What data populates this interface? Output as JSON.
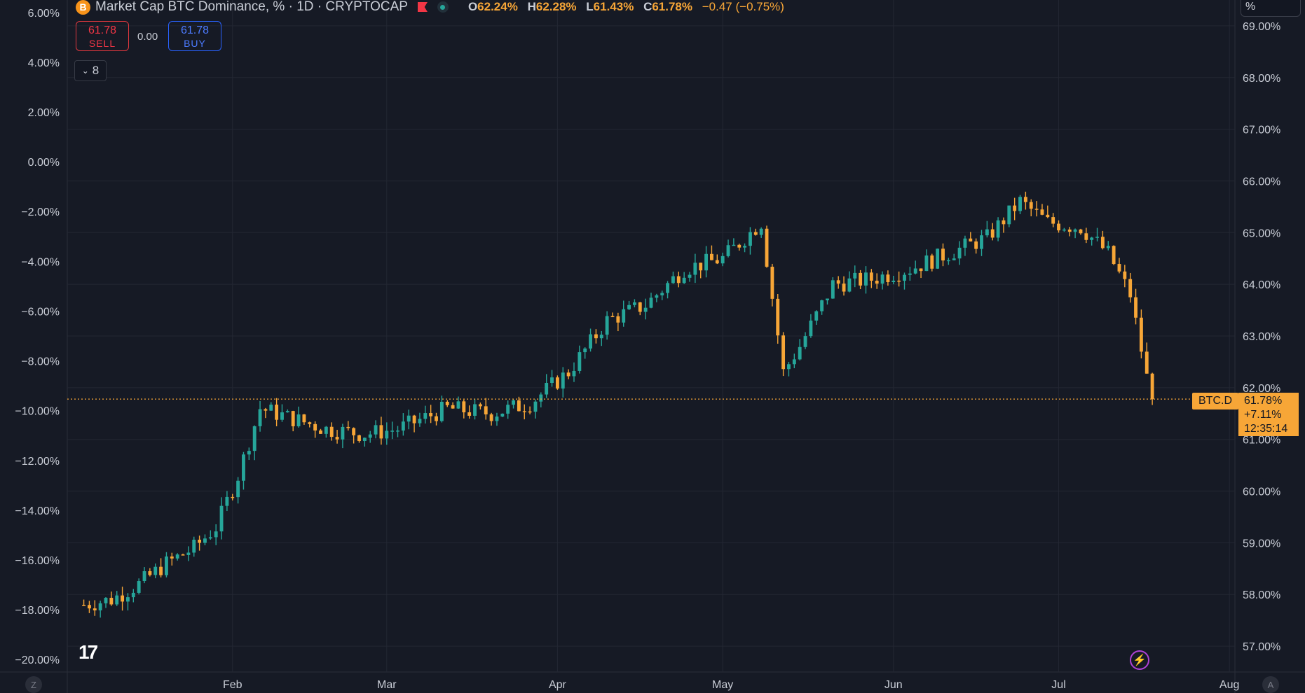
{
  "header": {
    "title": "Market Cap BTC Dominance, % · 1D · CRYPTOCAP",
    "logo_letter": "B",
    "ohlc": {
      "o_label": "O",
      "o": "62.24%",
      "h_label": "H",
      "h": "62.28%",
      "l_label": "L",
      "l": "61.43%",
      "c_label": "C",
      "c": "61.78%",
      "change": "−0.47 (−0.75%)"
    }
  },
  "trade": {
    "sell_price": "61.78",
    "sell_label": "SELL",
    "buy_price": "61.78",
    "buy_label": "BUY",
    "spread": "0.00"
  },
  "indicators_toggle": {
    "count": "8"
  },
  "scale_mode": "%",
  "price_tag": {
    "symbol": "BTC.D",
    "price": "61.78%",
    "change": "+7.11%",
    "countdown": "12:35:14"
  },
  "colors": {
    "background": "#161a25",
    "up": "#26a69a",
    "down": "#f7a637",
    "grid": "#232733",
    "text": "#c9cdd6",
    "last_price_line": "#f7a637"
  },
  "icons": {
    "logo": "tradingview-logo-icon",
    "alert": "lightning-icon"
  },
  "corners": {
    "left": "Z",
    "right": "A"
  },
  "chart_data": {
    "type": "candlestick",
    "title": "Market Cap BTC Dominance, % · 1D · CRYPTOCAP",
    "x_axis": {
      "ticks": [
        "Feb",
        "Mar",
        "Apr",
        "May",
        "Jun",
        "Jul",
        "Aug"
      ],
      "range": [
        "2022-01-02",
        "2022-08-02"
      ]
    },
    "y_axis_left": {
      "ticks": [
        "6.00%",
        "4.00%",
        "2.00%",
        "0.00%",
        "−2.00%",
        "−4.00%",
        "−6.00%",
        "−8.00%",
        "−10.00%",
        "−12.00%",
        "−14.00%",
        "−16.00%",
        "−18.00%",
        "−20.00%"
      ],
      "range": [
        -20.5,
        6.5
      ]
    },
    "y_axis_right": {
      "ticks": [
        "69.00%",
        "68.00%",
        "67.00%",
        "66.00%",
        "65.00%",
        "64.00%",
        "63.00%",
        "62.00%",
        "61.00%",
        "60.00%",
        "59.00%",
        "58.00%",
        "57.00%"
      ],
      "range": [
        56.5,
        69.5
      ]
    },
    "last_price": 61.78,
    "candles_close": [
      {
        "date": "2022-01-05",
        "close": 57.8
      },
      {
        "date": "2022-01-10",
        "close": 57.9
      },
      {
        "date": "2022-01-15",
        "close": 58.2
      },
      {
        "date": "2022-01-20",
        "close": 58.6
      },
      {
        "date": "2022-01-25",
        "close": 58.9
      },
      {
        "date": "2022-01-29",
        "close": 59.3
      },
      {
        "date": "2022-02-02",
        "close": 60.3
      },
      {
        "date": "2022-02-06",
        "close": 61.6
      },
      {
        "date": "2022-02-12",
        "close": 61.4
      },
      {
        "date": "2022-02-18",
        "close": 61.2
      },
      {
        "date": "2022-02-25",
        "close": 61.1
      },
      {
        "date": "2022-03-03",
        "close": 61.2
      },
      {
        "date": "2022-03-12",
        "close": 61.6
      },
      {
        "date": "2022-03-20",
        "close": 61.5
      },
      {
        "date": "2022-03-27",
        "close": 61.7
      },
      {
        "date": "2022-04-03",
        "close": 62.3
      },
      {
        "date": "2022-04-10",
        "close": 63.3
      },
      {
        "date": "2022-04-17",
        "close": 63.6
      },
      {
        "date": "2022-04-24",
        "close": 64.3
      },
      {
        "date": "2022-05-01",
        "close": 64.5
      },
      {
        "date": "2022-05-08",
        "close": 65.2
      },
      {
        "date": "2022-05-12",
        "close": 62.3
      },
      {
        "date": "2022-05-15",
        "close": 62.8
      },
      {
        "date": "2022-05-21",
        "close": 64.0
      },
      {
        "date": "2022-05-28",
        "close": 64.1
      },
      {
        "date": "2022-06-04",
        "close": 64.3
      },
      {
        "date": "2022-06-11",
        "close": 64.6
      },
      {
        "date": "2022-06-18",
        "close": 64.9
      },
      {
        "date": "2022-06-24",
        "close": 65.6
      },
      {
        "date": "2022-06-29",
        "close": 65.2
      },
      {
        "date": "2022-07-05",
        "close": 65.1
      },
      {
        "date": "2022-07-10",
        "close": 64.6
      },
      {
        "date": "2022-07-14",
        "close": 63.8
      },
      {
        "date": "2022-07-17",
        "close": 62.2
      },
      {
        "date": "2022-07-18",
        "close": 61.78
      }
    ]
  }
}
